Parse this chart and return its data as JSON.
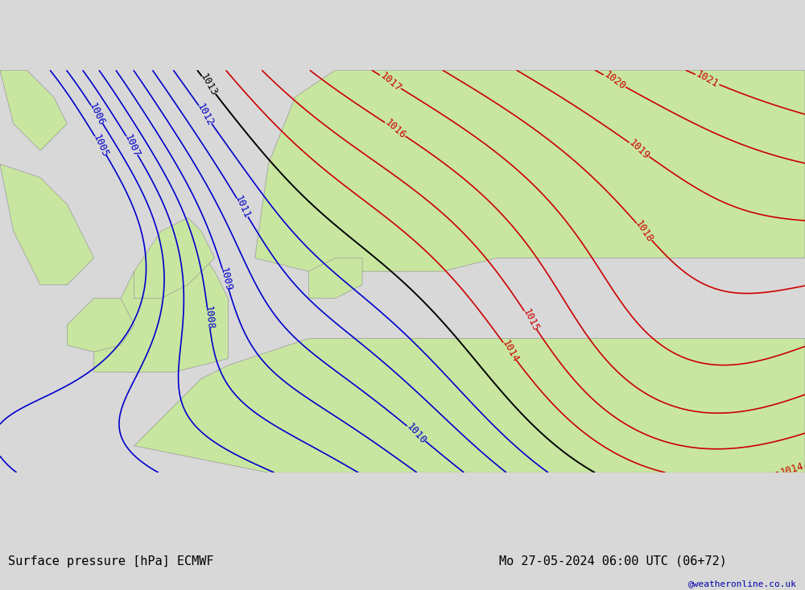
{
  "title_left": "Surface pressure [hPa] ECMWF",
  "title_right": "Mo 27-05-2024 06:00 UTC (06+72)",
  "watermark": "@weatheronline.co.uk",
  "bg_color": "#e8e8e8",
  "land_color": "#c8e6a0",
  "sea_color": "#e8e8e8",
  "isobar_levels_blue": [
    1005,
    1006,
    1007,
    1008,
    1009,
    1010,
    1011,
    1012
  ],
  "isobar_levels_black": [
    1013
  ],
  "isobar_levels_red": [
    1014,
    1015,
    1016,
    1017,
    1018,
    1019,
    1020,
    1021
  ],
  "blue_color": "#0000cc",
  "black_color": "#000000",
  "red_color": "#cc0000",
  "label_fontsize": 9,
  "footer_fontsize": 11,
  "footer_bg": "#d0d0d0"
}
